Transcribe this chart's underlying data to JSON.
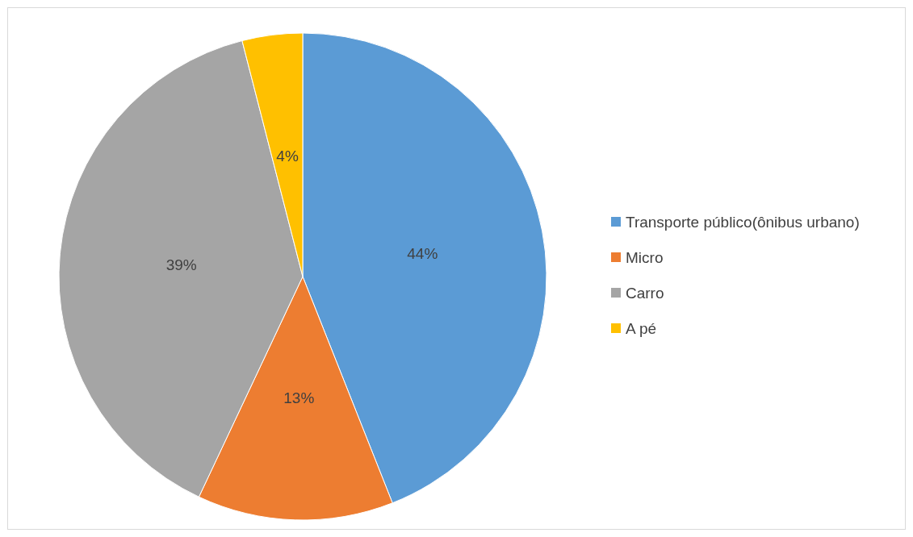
{
  "chart_data": {
    "type": "pie",
    "categories": [
      "Transporte público(ônibus urbano)",
      "Micro",
      "Carro",
      "A pé"
    ],
    "values": [
      44,
      13,
      39,
      4
    ],
    "colors": [
      "#5b9bd5",
      "#ed7d31",
      "#a5a5a5",
      "#ffc000"
    ],
    "value_labels": [
      "44%",
      "13%",
      "39%",
      "4%"
    ],
    "legend": "right"
  }
}
